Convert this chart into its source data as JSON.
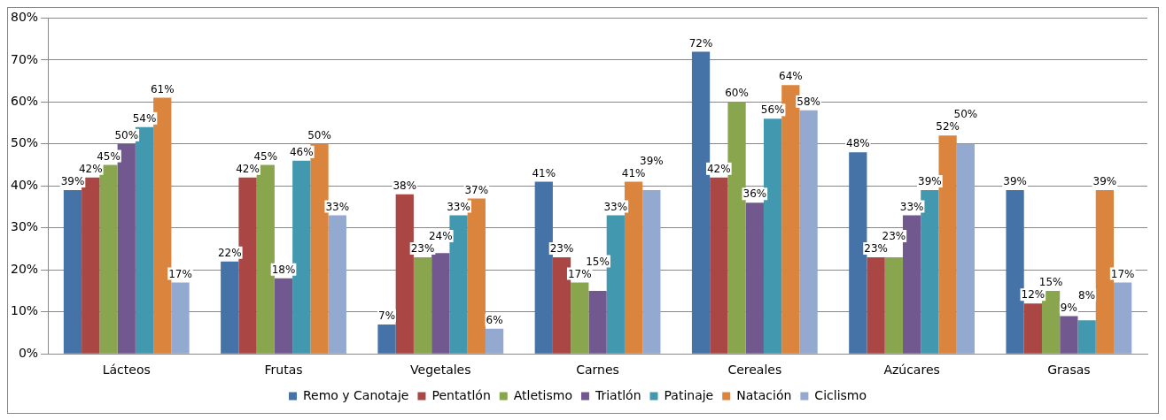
{
  "chart_data": {
    "type": "bar",
    "categories": [
      "Lácteos",
      "Frutas",
      "Vegetales",
      "Carnes",
      "Cereales",
      "Azúcares",
      "Grasas"
    ],
    "series": [
      {
        "name": "Remo y Canotaje",
        "color": "#4572a7",
        "values": [
          39,
          22,
          7,
          41,
          72,
          48,
          39
        ],
        "value_labels": [
          "39%",
          "22%",
          "7%",
          "41%",
          "72%",
          "48%",
          "39%"
        ]
      },
      {
        "name": "Pentatlón",
        "color": "#aa4643",
        "values": [
          42,
          42,
          38,
          23,
          42,
          23,
          12
        ],
        "value_labels": [
          "42%",
          "42%",
          "38%",
          "23%",
          "42%",
          "23%",
          "12%"
        ]
      },
      {
        "name": "Atletismo",
        "color": "#89a54e",
        "values": [
          45,
          45,
          23,
          17,
          60,
          23,
          15
        ],
        "value_labels": [
          "45%",
          "45%",
          "23%",
          "17%",
          "60%",
          "23%",
          "15%"
        ]
      },
      {
        "name": "Triatlón",
        "color": "#71588f",
        "values": [
          50,
          18,
          24,
          15,
          36,
          33,
          9
        ],
        "value_labels": [
          "50%",
          "18%",
          "24%",
          "15%",
          "36%",
          "33%",
          "9%"
        ]
      },
      {
        "name": "Patinaje",
        "color": "#4198af",
        "values": [
          54,
          46,
          33,
          33,
          56,
          39,
          8
        ],
        "value_labels": [
          "54%",
          "46%",
          "33%",
          "33%",
          "56%",
          "39%",
          "8%"
        ]
      },
      {
        "name": "Natación",
        "color": "#db843d",
        "values": [
          61,
          50,
          37,
          41,
          64,
          52,
          39
        ],
        "value_labels": [
          "61%",
          "50%",
          "37%",
          "41%",
          "64%",
          "52%",
          "39%"
        ]
      },
      {
        "name": "Ciclismo",
        "color": "#93a9cf",
        "values": [
          17,
          33,
          6,
          39,
          58,
          50,
          17
        ],
        "value_labels": [
          "17%",
          "33%",
          "6%",
          "39%",
          "58%",
          "50%",
          "17%"
        ]
      }
    ],
    "ylim": [
      0,
      80
    ],
    "yticks": [
      {
        "value": 0,
        "label": "0%"
      },
      {
        "value": 10,
        "label": "10%"
      },
      {
        "value": 20,
        "label": "20%"
      },
      {
        "value": 30,
        "label": "30%"
      },
      {
        "value": 40,
        "label": "40%"
      },
      {
        "value": 50,
        "label": "50%"
      },
      {
        "value": 60,
        "label": "60%"
      },
      {
        "value": 70,
        "label": "70%"
      },
      {
        "value": 80,
        "label": "80%"
      }
    ],
    "grid": "y",
    "legend": "bottom"
  }
}
